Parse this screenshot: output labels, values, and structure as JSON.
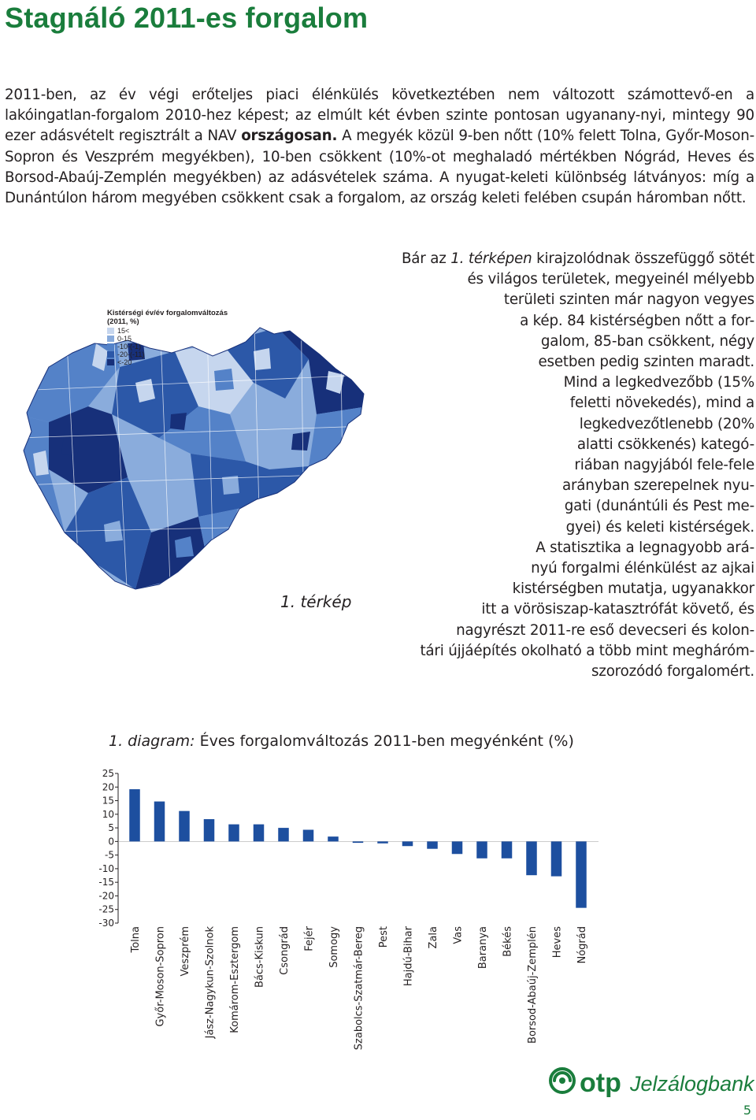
{
  "page": {
    "title": "Stagnáló 2011-es forgalom",
    "page_number": "5"
  },
  "intro": {
    "text_a": "2011-ben, az év végi erőteljes piaci élénkülés következtében nem változott számottevő-en a lakóingatlan-forgalom 2010-hez képest; az elmúlt két évben szinte pontosan ugyanany-nyi, mintegy 90 ezer adásvételt regisztrált a NAV ",
    "text_bold": "országosan.",
    "text_b": " A megyék közül 9-ben nőtt (10% felett Tolna, Győr-Moson-Sopron és Veszprém megyékben), 10-ben csökkent (10%-ot meghaladó mértékben Nógrád, Heves és Borsod-Abaúj-Zemplén megyékben) az adásvételek száma. A nyugat-keleti különbség látványos: míg a Dunántúlon három megyében csökkent csak a forgalom, az ország keleti felében csupán háromban nőtt."
  },
  "map": {
    "caption": "1. térkép",
    "legend_title_1": "Kistérségi év/év forgalomváltozás",
    "legend_title_2": "(2011, %)",
    "legend": [
      {
        "label": "15<",
        "color": "#c6d6ee"
      },
      {
        "label": "0-15",
        "color": "#8aacdc"
      },
      {
        "label": "-10-(-1)",
        "color": "#5482c8"
      },
      {
        "label": "-20-(-11)",
        "color": "#2c58a8"
      },
      {
        "label": "<-20",
        "color": "#17307a"
      }
    ]
  },
  "side": {
    "line1_pre": "Bár az ",
    "line1_em": "1. térképen",
    "line1_post": " kirajzolódnak összefüggő sötét",
    "lines": [
      "és világos területek, megyeinél mélyebb",
      "területi szinten már nagyon vegyes",
      "a kép. 84 kistérségben nőtt a for-",
      "galom, 85-ban csökkent, négy",
      "esetben pedig szinten maradt.",
      "Mind a legkedvezőbb (15%",
      "feletti növekedés), mind a",
      "legkedvezőtlenebb (20%",
      "alatti csökkenés) kategó-",
      "riában nagyjából fele-fele",
      "arányban szerepelnek nyu-",
      "gati (dunántúli és Pest me-",
      "gyei) és keleti kistérségek.",
      "A statisztika a legnagyobb ará-",
      "nyú forgalmi élénkülést az ajkai",
      "kistérségben mutatja, ugyanakkor",
      "itt a vörösiszap-katasztrófát követő, és",
      "nagyrészt 2011-re eső devecseri és kolon-",
      "tári újjáépítés okolható a több mint megháróm-",
      "szorozódó forgalomért."
    ]
  },
  "diagram": {
    "title_em": "1. diagram:",
    "title_rest": " Éves forgalomváltozás 2011-ben megyénként (%)"
  },
  "chart_data": {
    "type": "bar",
    "categories": [
      "Tolna",
      "Győr-Moson-Sopron",
      "Veszprém",
      "Jász-Nagykun-Szolnok",
      "Komárom-Esztergom",
      "Bács-Kiskun",
      "Csongrád",
      "Fejér",
      "Somogy",
      "Szabolcs-Szatmár-Bereg",
      "Pest",
      "Hajdú-Bihar",
      "Zala",
      "Vas",
      "Baranya",
      "Békés",
      "Borsod-Abaúj-Zemplén",
      "Heves",
      "Nógrád"
    ],
    "values": [
      19.2,
      14.7,
      11.2,
      8.2,
      6.3,
      6.3,
      5.0,
      4.3,
      1.8,
      -0.5,
      -0.7,
      -1.7,
      -2.7,
      -4.6,
      -6.2,
      -6.2,
      -12.4,
      -12.8,
      -24.4
    ],
    "yticks": [
      "25",
      "20",
      "15",
      "10",
      "5",
      "0",
      "-5",
      "-10",
      "-15",
      "-20",
      "-25",
      "-30"
    ],
    "ylim": [
      -30,
      25
    ],
    "bar_color": "#1d4f9f",
    "grid": false
  },
  "logo": {
    "brand": "otp",
    "product": "Jelzálogbank",
    "color": "#1a7d3c"
  }
}
